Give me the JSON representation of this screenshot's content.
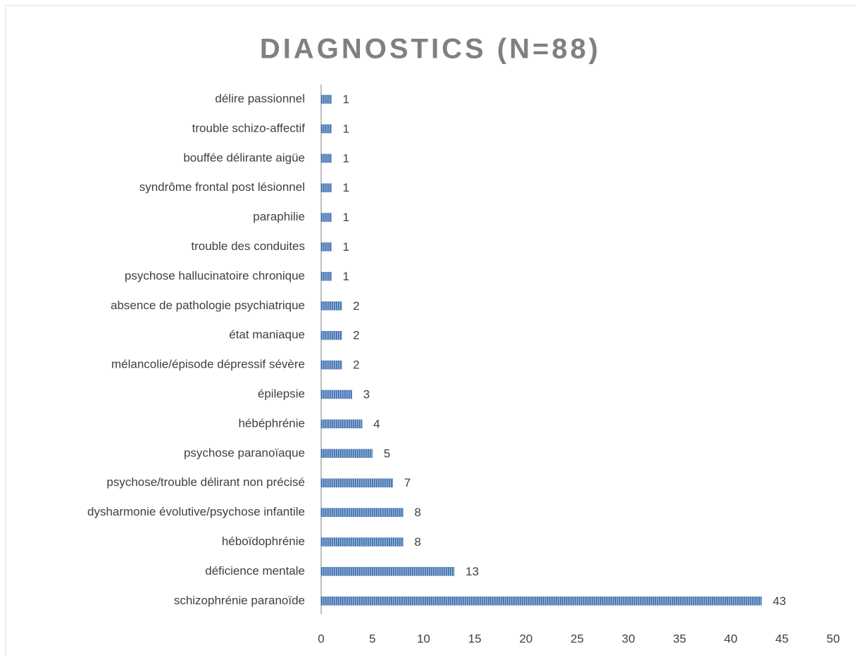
{
  "chart_data": {
    "type": "bar",
    "orientation": "horizontal",
    "title": "DIAGNOSTICS (N=88)",
    "categories": [
      "délire passionnel",
      "trouble schizo-affectif",
      "bouffée délirante aigüe",
      "syndrôme frontal post lésionnel",
      "paraphilie",
      "trouble des conduites",
      "psychose hallucinatoire chronique",
      "absence de pathologie psychiatrique",
      "état maniaque",
      "mélancolie/épisode dépressif sévère",
      "épilepsie",
      "hébéphrénie",
      "psychose paranoïaque",
      "psychose/trouble délirant non précisé",
      "dysharmonie évolutive/psychose infantile",
      "héboïdophrénie",
      "déficience mentale",
      "schizophrénie paranoïde"
    ],
    "values": [
      1,
      1,
      1,
      1,
      1,
      1,
      1,
      2,
      2,
      2,
      3,
      4,
      5,
      7,
      8,
      8,
      13,
      43
    ],
    "color": "#4f81bd",
    "xlim": [
      0,
      50
    ],
    "xticks": [
      0,
      5,
      10,
      15,
      20,
      25,
      30,
      35,
      40,
      45,
      50
    ],
    "grid": false
  }
}
